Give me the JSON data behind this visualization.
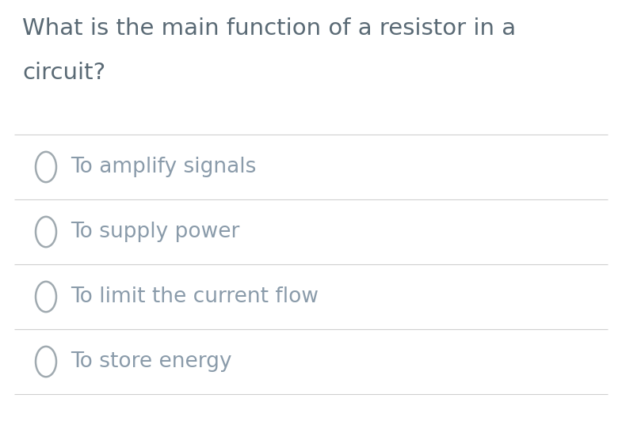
{
  "question_line1": "What is the main function of a resistor in a",
  "question_line2": "circuit?",
  "options": [
    "To amplify signals",
    "To supply power",
    "To limit the current flow",
    "To store energy"
  ],
  "background_color": "#ffffff",
  "text_color": "#8a9baa",
  "question_color": "#5a6a75",
  "divider_color": "#d0d0d0",
  "circle_edge_color": "#a0aab0",
  "question_fontsize": 21,
  "option_fontsize": 19,
  "fig_width": 7.85,
  "fig_height": 5.32,
  "dpi": 100
}
